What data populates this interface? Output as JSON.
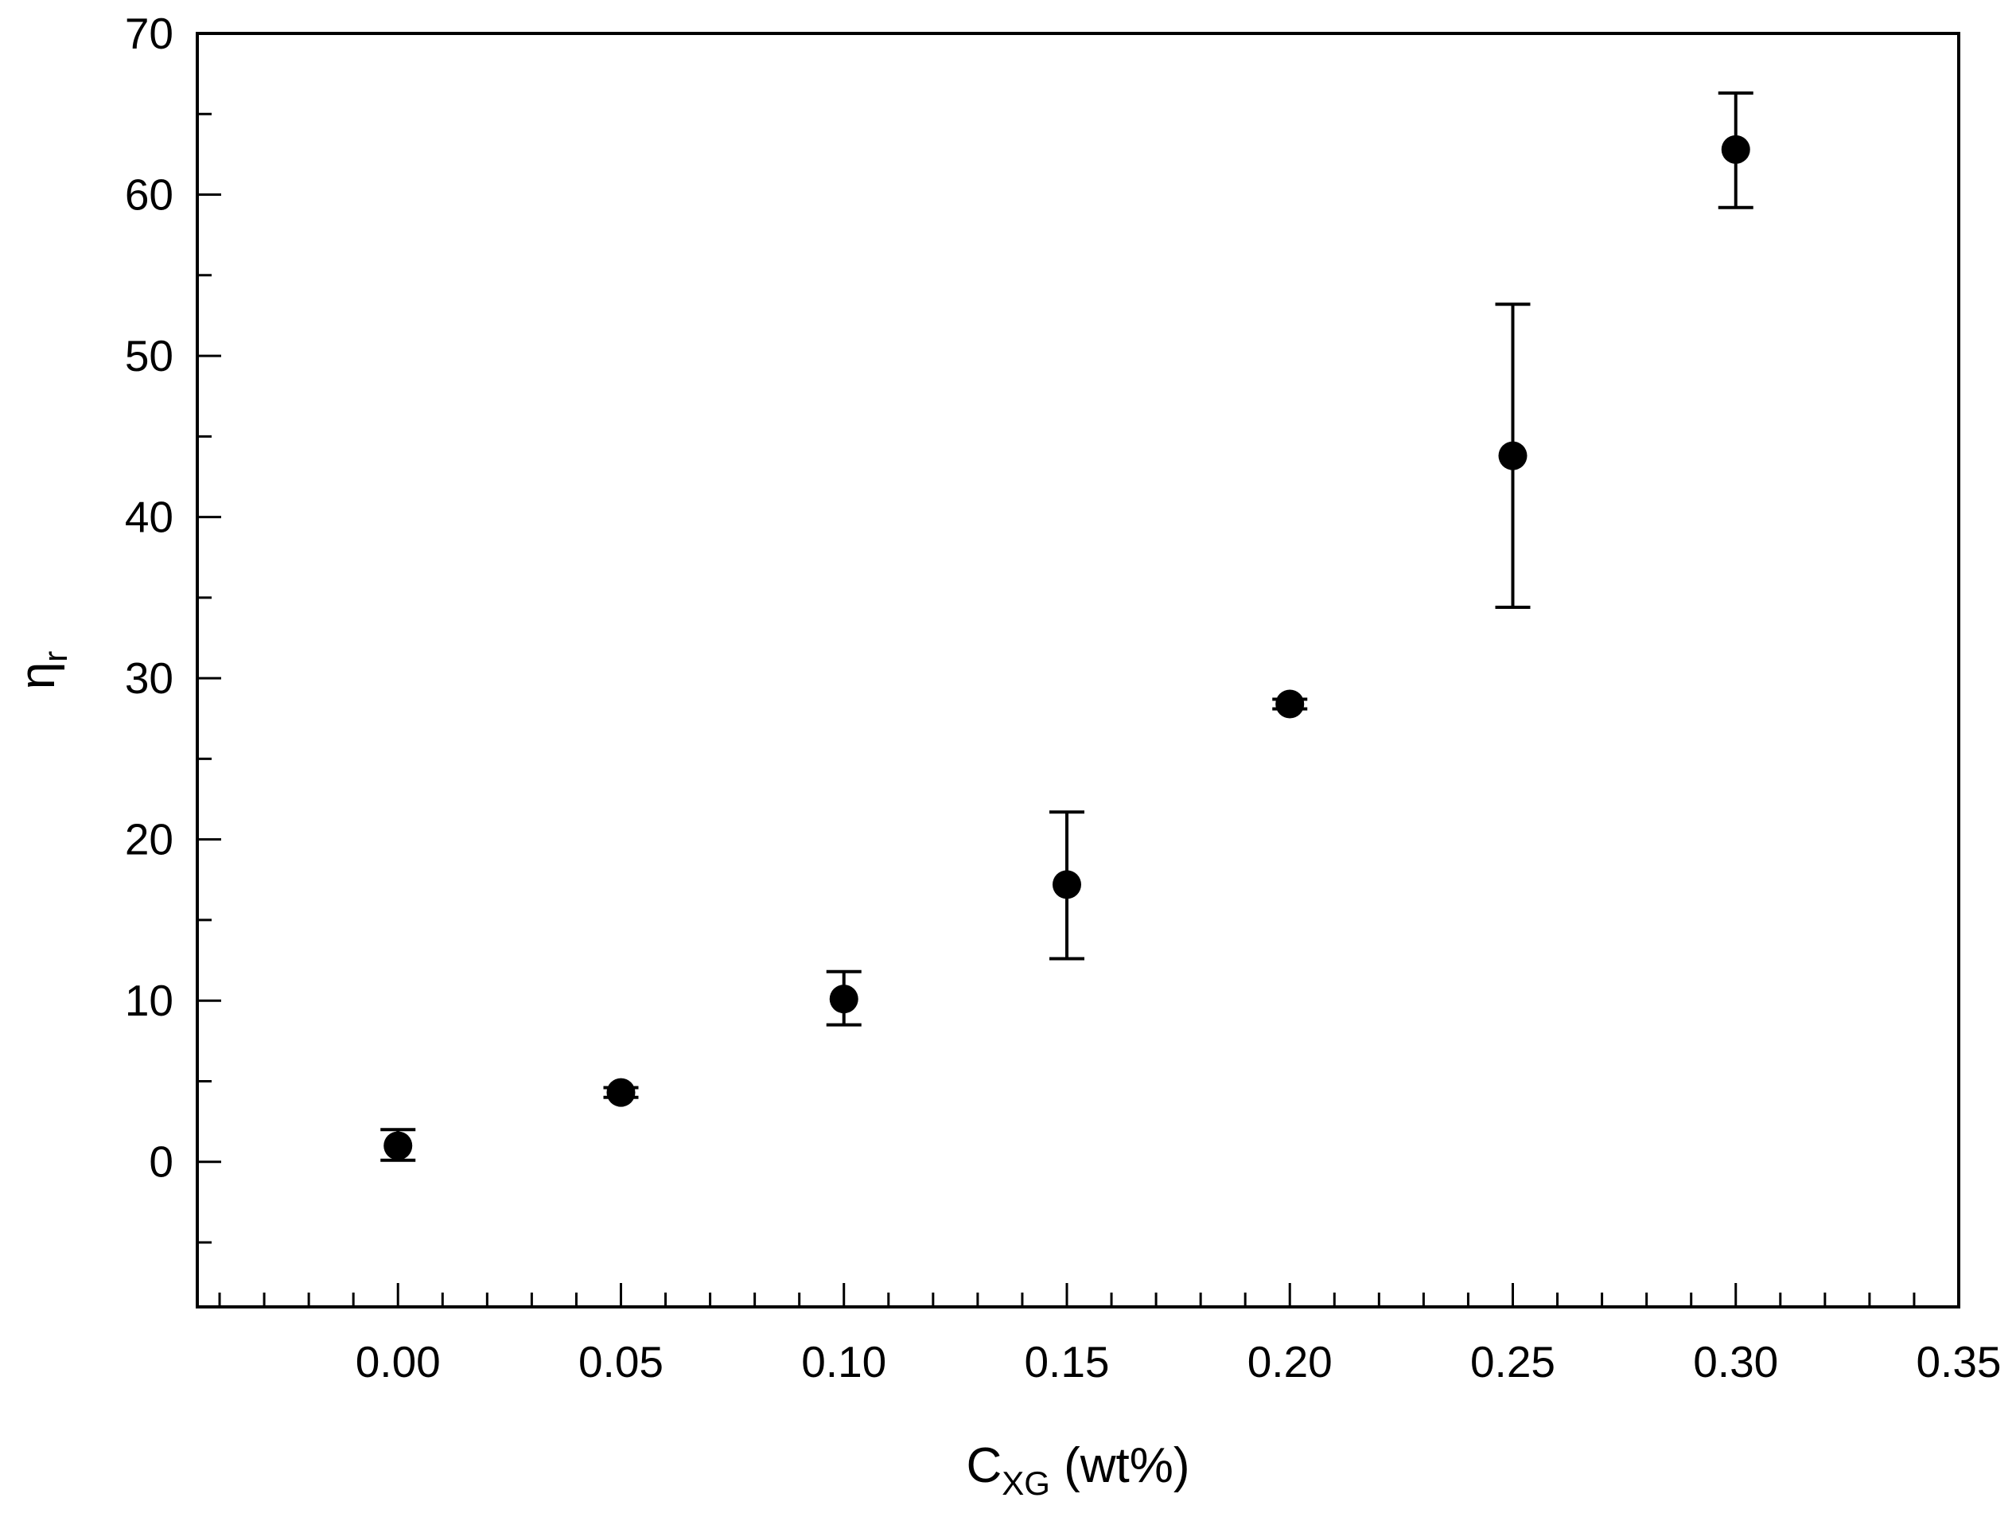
{
  "chart_data": {
    "type": "scatter",
    "xlabel": {
      "main": "C",
      "sub": "XG",
      "suffix": " (wt%)"
    },
    "ylabel": {
      "main": "η",
      "sub": "r"
    },
    "xlim": [
      -0.045,
      0.35
    ],
    "ylim": [
      -9,
      70
    ],
    "x_ticks": [
      0.0,
      0.05,
      0.1,
      0.15,
      0.2,
      0.25,
      0.3,
      0.35
    ],
    "x_tick_labels": [
      "0.00",
      "0.05",
      "0.10",
      "0.15",
      "0.20",
      "0.25",
      "0.30",
      "0.35"
    ],
    "x_minor_step": 0.01,
    "y_ticks": [
      0,
      10,
      20,
      30,
      40,
      50,
      60,
      70
    ],
    "y_tick_labels": [
      "0",
      "10",
      "20",
      "30",
      "40",
      "50",
      "60",
      "70"
    ],
    "y_minor_step": 5,
    "grid": false,
    "legend": "none",
    "marker_color": "#000000",
    "points": [
      {
        "x": 0.0,
        "y": 1.0,
        "err_low": 0.1,
        "err_high": 2.0
      },
      {
        "x": 0.05,
        "y": 4.3,
        "err_low": 4.0,
        "err_high": 4.6
      },
      {
        "x": 0.1,
        "y": 10.1,
        "err_low": 8.5,
        "err_high": 11.8
      },
      {
        "x": 0.15,
        "y": 17.2,
        "err_low": 12.6,
        "err_high": 21.7
      },
      {
        "x": 0.2,
        "y": 28.4,
        "err_low": 28.1,
        "err_high": 28.7
      },
      {
        "x": 0.25,
        "y": 43.8,
        "err_low": 34.4,
        "err_high": 53.2
      },
      {
        "x": 0.3,
        "y": 62.8,
        "err_low": 59.2,
        "err_high": 66.3
      }
    ]
  }
}
